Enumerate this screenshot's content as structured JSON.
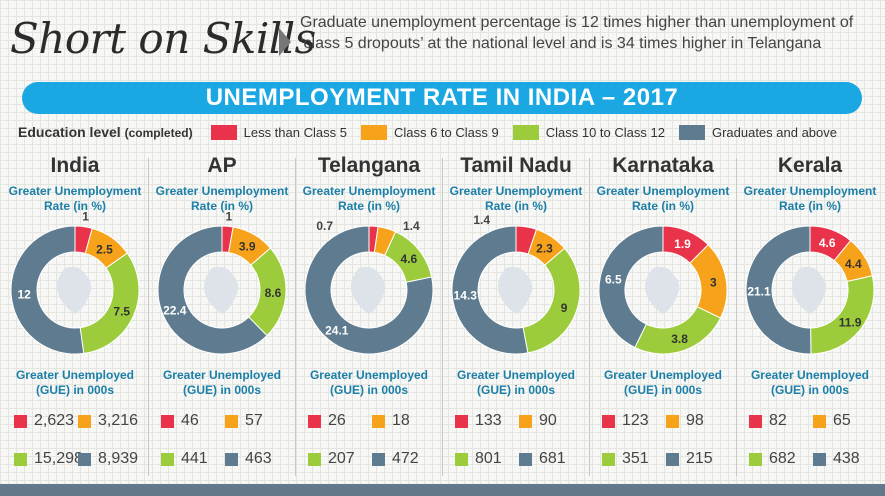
{
  "title": "Short on Skills",
  "subtitle": "Graduate unemployment percentage is 12 times higher than unemployment of ‘class 5 dropouts’ at the national level and is 34 times higher in Telangana",
  "banner": "UNEMPLOYMENT RATE IN INDIA – 2017",
  "legend": {
    "lead": "Education level",
    "lead_note": "(completed)",
    "items": [
      {
        "label": "Less than Class 5",
        "color": "#e8334a"
      },
      {
        "label": "Class 6 to Class 9",
        "color": "#f7a21b"
      },
      {
        "label": "Class 10 to Class 12",
        "color": "#9ccc3b"
      },
      {
        "label": "Graduates and above",
        "color": "#5e7b8f"
      }
    ]
  },
  "labels": {
    "rate": "Greater Unemployment Rate (in %)",
    "gue": "Greater Unemployed (GUE) in 000s"
  },
  "chart_data": {
    "type": "pie",
    "subtype": "donut",
    "title": "UNEMPLOYMENT RATE IN INDIA – 2017",
    "categories": [
      "Less than Class 5",
      "Class 6 to Class 9",
      "Class 10 to Class 12",
      "Graduates and above"
    ],
    "colors": [
      "#e8334a",
      "#f7a21b",
      "#9ccc3b",
      "#5e7b8f"
    ],
    "panels": [
      {
        "region": "India",
        "rates": [
          1,
          2.5,
          7.5,
          12
        ],
        "rate_labels": [
          "1",
          "2.5",
          "7.5",
          "12"
        ],
        "gue": [
          "2,623",
          "3,216",
          "15,298",
          "8,939"
        ]
      },
      {
        "region": "AP",
        "rates": [
          1,
          3.9,
          8.6,
          22.4
        ],
        "rate_labels": [
          "1",
          "3.9",
          "8.6",
          "22.4"
        ],
        "gue": [
          "46",
          "57",
          "441",
          "463"
        ]
      },
      {
        "region": "Telangana",
        "rates": [
          0.7,
          1.4,
          4.6,
          24.1
        ],
        "rate_labels": [
          "0.7",
          "1.4",
          "4.6",
          "24.1"
        ],
        "gue": [
          "26",
          "18",
          "207",
          "472"
        ]
      },
      {
        "region": "Tamil Nadu",
        "rates": [
          1.4,
          2.3,
          9,
          14.3
        ],
        "rate_labels": [
          "1.4",
          "2.3",
          "9",
          "14.3"
        ],
        "gue": [
          "133",
          "90",
          "801",
          "681"
        ]
      },
      {
        "region": "Karnataka",
        "rates": [
          1.9,
          3,
          3.8,
          6.5
        ],
        "rate_labels": [
          "1.9",
          "3",
          "3.8",
          "6.5"
        ],
        "gue": [
          "123",
          "98",
          "351",
          "215"
        ]
      },
      {
        "region": "Kerala",
        "rates": [
          4.6,
          4.4,
          11.9,
          21.1
        ],
        "rate_labels": [
          "4.6",
          "4.4",
          "11.9",
          "21.1"
        ],
        "gue": [
          "82",
          "65",
          "682",
          "438"
        ]
      }
    ]
  }
}
